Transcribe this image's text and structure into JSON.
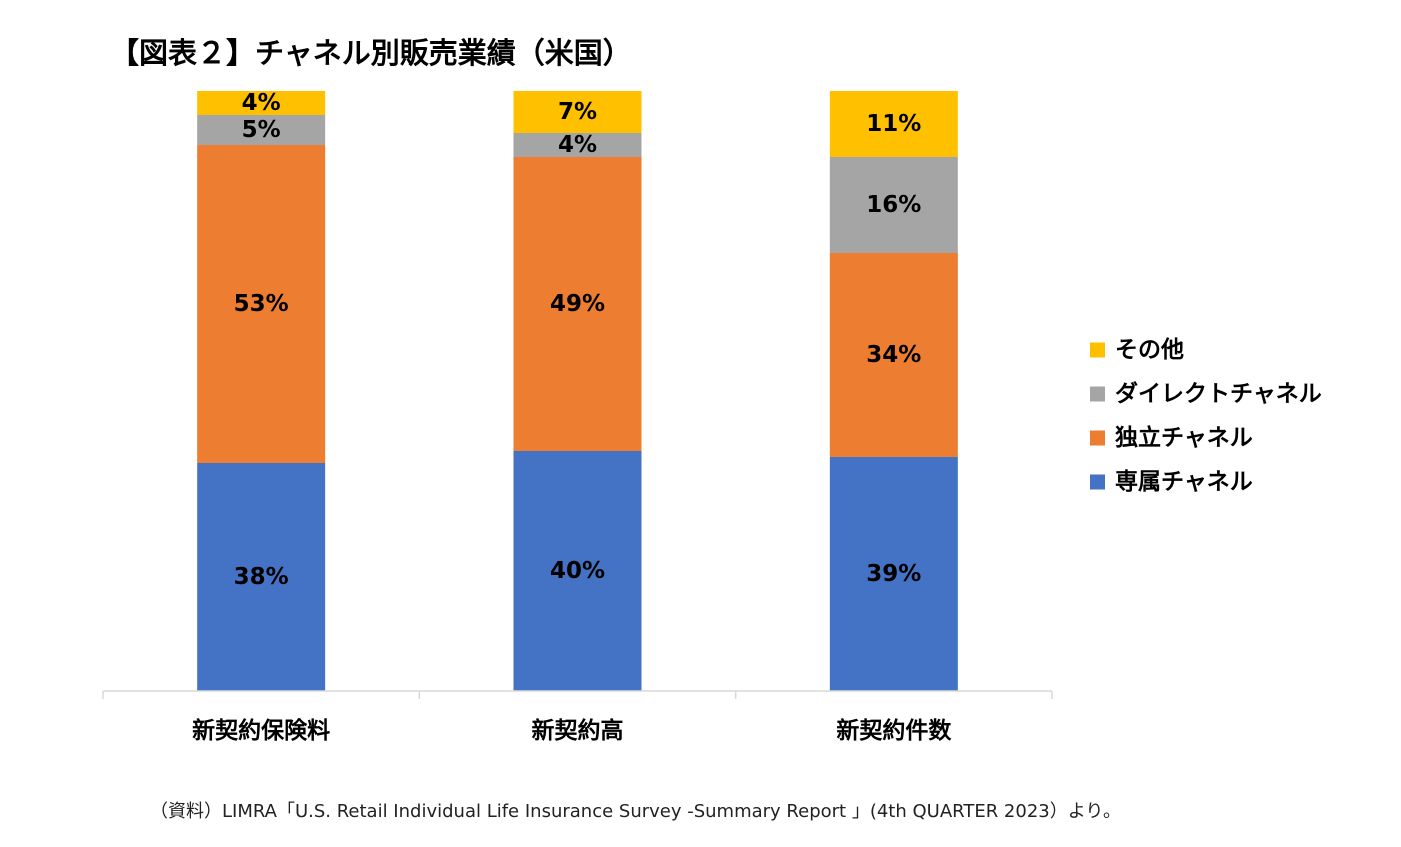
{
  "title": "【図表２】チャネル別販売業績（米国）",
  "source": "（資料）LIMRA「U.S. Retail Individual Life Insurance Survey -Summary Report 」(4th QUARTER 2023）より。",
  "chart_data": {
    "type": "bar",
    "stacked": true,
    "percent_stacked": true,
    "categories": [
      "新契約保険料",
      "新契約高",
      "新契約件数"
    ],
    "series": [
      {
        "name": "専属チャネル",
        "color": "#4472C4",
        "values": [
          38,
          40,
          39
        ],
        "labels": [
          "38%",
          "40%",
          "39%"
        ]
      },
      {
        "name": "独立チャネル",
        "color": "#ED7D31",
        "values": [
          53,
          49,
          34
        ],
        "labels": [
          "53%",
          "49%",
          "34%"
        ]
      },
      {
        "name": "ダイレクトチャネル",
        "color": "#A5A5A5",
        "values": [
          5,
          4,
          16
        ],
        "labels": [
          "5%",
          "4%",
          "16%"
        ]
      },
      {
        "name": "その他",
        "color": "#FFC000",
        "values": [
          4,
          7,
          11
        ],
        "labels": [
          "4%",
          "7%",
          "11%"
        ]
      }
    ],
    "legend_order": [
      "その他",
      "ダイレクトチャネル",
      "独立チャネル",
      "専属チャネル"
    ],
    "legend_position": "right",
    "ylim": [
      0,
      100
    ],
    "grid": false
  }
}
